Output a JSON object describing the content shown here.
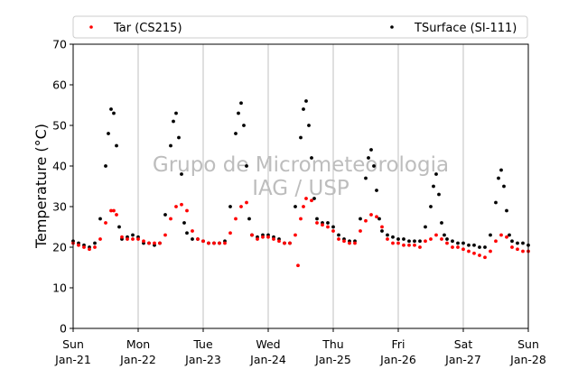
{
  "chart_data": {
    "type": "scatter",
    "title": "",
    "xlabel": "",
    "ylabel": "Temperature (°C)",
    "ylim": [
      0,
      70
    ],
    "yticks": [
      0,
      10,
      20,
      30,
      40,
      50,
      60,
      70
    ],
    "xlim": [
      "2018-01-21",
      "2018-01-28"
    ],
    "xticks": [
      {
        "day": "Sun",
        "date": "Jan-21"
      },
      {
        "day": "Mon",
        "date": "Jan-22"
      },
      {
        "day": "Tue",
        "date": "Jan-23"
      },
      {
        "day": "Wed",
        "date": "Jan-24"
      },
      {
        "day": "Thu",
        "date": "Jan-25"
      },
      {
        "day": "Fri",
        "date": "Jan-26"
      },
      {
        "day": "Sat",
        "date": "Jan-27"
      },
      {
        "day": "Sun",
        "date": "Jan-28"
      }
    ],
    "grid": "vertical",
    "legend_position": "top",
    "watermark": [
      "Grupo de Micrometeorologia",
      "IAG / USP"
    ],
    "series": [
      {
        "name": "Tar (CS215)",
        "color": "#ff0000",
        "x": [
          "2018-01-21 00:00",
          "2018-01-21 02:00",
          "2018-01-21 04:00",
          "2018-01-21 06:00",
          "2018-01-21 08:00",
          "2018-01-21 10:00",
          "2018-01-21 12:00",
          "2018-01-21 14:00",
          "2018-01-21 15:00",
          "2018-01-21 16:00",
          "2018-01-21 18:00",
          "2018-01-21 20:00",
          "2018-01-21 22:00",
          "2018-01-22 00:00",
          "2018-01-22 02:00",
          "2018-01-22 04:00",
          "2018-01-22 06:00",
          "2018-01-22 08:00",
          "2018-01-22 10:00",
          "2018-01-22 12:00",
          "2018-01-22 14:00",
          "2018-01-22 16:00",
          "2018-01-22 18:00",
          "2018-01-22 20:00",
          "2018-01-22 22:00",
          "2018-01-23 00:00",
          "2018-01-23 02:00",
          "2018-01-23 04:00",
          "2018-01-23 06:00",
          "2018-01-23 08:00",
          "2018-01-23 10:00",
          "2018-01-23 12:00",
          "2018-01-23 14:00",
          "2018-01-23 16:00",
          "2018-01-23 18:00",
          "2018-01-23 20:00",
          "2018-01-23 22:00",
          "2018-01-24 00:00",
          "2018-01-24 02:00",
          "2018-01-24 04:00",
          "2018-01-24 06:00",
          "2018-01-24 08:00",
          "2018-01-24 10:00",
          "2018-01-24 12:00",
          "2018-01-24 13:00",
          "2018-01-24 14:00",
          "2018-01-24 16:00",
          "2018-01-24 18:00",
          "2018-01-24 20:00",
          "2018-01-24 22:00",
          "2018-01-25 00:00",
          "2018-01-25 02:00",
          "2018-01-25 04:00",
          "2018-01-25 06:00",
          "2018-01-25 08:00",
          "2018-01-25 10:00",
          "2018-01-25 12:00",
          "2018-01-25 14:00",
          "2018-01-25 16:00",
          "2018-01-25 18:00",
          "2018-01-25 20:00",
          "2018-01-25 22:00",
          "2018-01-26 00:00",
          "2018-01-26 02:00",
          "2018-01-26 04:00",
          "2018-01-26 06:00",
          "2018-01-26 08:00",
          "2018-01-26 10:00",
          "2018-01-26 12:00",
          "2018-01-26 14:00",
          "2018-01-26 16:00",
          "2018-01-26 18:00",
          "2018-01-26 20:00",
          "2018-01-26 22:00",
          "2018-01-27 00:00",
          "2018-01-27 02:00",
          "2018-01-27 04:00",
          "2018-01-27 06:00",
          "2018-01-27 08:00",
          "2018-01-27 10:00",
          "2018-01-27 12:00",
          "2018-01-27 14:00",
          "2018-01-27 16:00",
          "2018-01-27 18:00",
          "2018-01-27 20:00",
          "2018-01-27 22:00",
          "2018-01-28 00:00",
          "2018-01-24 11:00"
        ],
        "y": [
          21,
          20.5,
          20,
          19.5,
          20,
          22,
          26,
          29,
          29,
          28,
          22.5,
          22,
          22,
          22,
          21.5,
          21,
          21,
          21,
          23,
          27,
          30,
          30.5,
          29,
          24,
          22,
          21.5,
          21,
          21,
          21,
          21,
          23.5,
          27,
          30,
          31,
          23,
          22,
          22.5,
          22.5,
          22,
          21.5,
          21,
          21,
          23,
          27,
          30,
          32,
          31.5,
          26,
          25.5,
          25,
          24,
          22,
          21.5,
          21,
          21,
          24,
          26.5,
          28,
          27.5,
          25,
          22,
          21,
          21,
          20.5,
          20.5,
          20.5,
          20,
          21.5,
          22,
          23,
          22,
          21,
          20,
          20,
          19.5,
          19,
          18.5,
          18,
          17.5,
          19,
          21.5,
          23,
          22.5,
          20,
          19.5,
          19,
          19,
          15.5
        ]
      },
      {
        "name": "TSurface (SI-111)",
        "color": "#000000",
        "x": [
          "2018-01-21 00:00",
          "2018-01-21 02:00",
          "2018-01-21 04:00",
          "2018-01-21 06:00",
          "2018-01-21 08:00",
          "2018-01-21 10:00",
          "2018-01-21 12:00",
          "2018-01-21 13:00",
          "2018-01-21 14:00",
          "2018-01-21 15:00",
          "2018-01-21 16:00",
          "2018-01-21 17:00",
          "2018-01-21 18:00",
          "2018-01-21 20:00",
          "2018-01-21 22:00",
          "2018-01-22 00:00",
          "2018-01-22 02:00",
          "2018-01-22 04:00",
          "2018-01-22 06:00",
          "2018-01-22 08:00",
          "2018-01-22 10:00",
          "2018-01-22 12:00",
          "2018-01-22 13:00",
          "2018-01-22 14:00",
          "2018-01-22 15:00",
          "2018-01-22 16:00",
          "2018-01-22 17:00",
          "2018-01-22 18:00",
          "2018-01-22 20:00",
          "2018-01-22 22:00",
          "2018-01-23 00:00",
          "2018-01-23 02:00",
          "2018-01-23 04:00",
          "2018-01-23 06:00",
          "2018-01-23 08:00",
          "2018-01-23 10:00",
          "2018-01-23 12:00",
          "2018-01-23 13:00",
          "2018-01-23 14:00",
          "2018-01-23 15:00",
          "2018-01-23 16:00",
          "2018-01-23 17:00",
          "2018-01-23 18:00",
          "2018-01-23 20:00",
          "2018-01-23 22:00",
          "2018-01-24 00:00",
          "2018-01-24 02:00",
          "2018-01-24 04:00",
          "2018-01-24 06:00",
          "2018-01-24 08:00",
          "2018-01-24 10:00",
          "2018-01-24 12:00",
          "2018-01-24 13:00",
          "2018-01-24 14:00",
          "2018-01-24 15:00",
          "2018-01-24 16:00",
          "2018-01-24 17:00",
          "2018-01-24 18:00",
          "2018-01-24 20:00",
          "2018-01-24 22:00",
          "2018-01-25 00:00",
          "2018-01-25 02:00",
          "2018-01-25 04:00",
          "2018-01-25 06:00",
          "2018-01-25 08:00",
          "2018-01-25 10:00",
          "2018-01-25 12:00",
          "2018-01-25 13:00",
          "2018-01-25 14:00",
          "2018-01-25 15:00",
          "2018-01-25 16:00",
          "2018-01-25 17:00",
          "2018-01-25 18:00",
          "2018-01-25 20:00",
          "2018-01-25 22:00",
          "2018-01-26 00:00",
          "2018-01-26 02:00",
          "2018-01-26 04:00",
          "2018-01-26 06:00",
          "2018-01-26 08:00",
          "2018-01-26 10:00",
          "2018-01-26 12:00",
          "2018-01-26 13:00",
          "2018-01-26 14:00",
          "2018-01-26 15:00",
          "2018-01-26 16:00",
          "2018-01-26 17:00",
          "2018-01-26 18:00",
          "2018-01-26 20:00",
          "2018-01-26 22:00",
          "2018-01-27 00:00",
          "2018-01-27 02:00",
          "2018-01-27 04:00",
          "2018-01-27 06:00",
          "2018-01-27 08:00",
          "2018-01-27 10:00",
          "2018-01-27 12:00",
          "2018-01-27 13:00",
          "2018-01-27 14:00",
          "2018-01-27 15:00",
          "2018-01-27 16:00",
          "2018-01-27 17:00",
          "2018-01-27 18:00",
          "2018-01-27 20:00",
          "2018-01-27 22:00",
          "2018-01-28 00:00"
        ],
        "y": [
          21.5,
          21,
          20.5,
          20,
          21,
          27,
          40,
          48,
          54,
          53,
          45,
          25,
          22,
          22.5,
          23,
          22.5,
          21,
          21,
          20.5,
          21,
          28,
          45,
          51,
          53,
          47,
          38,
          26,
          23.5,
          22,
          22,
          21.5,
          21,
          21,
          21,
          21.5,
          30,
          48,
          53,
          55.5,
          50,
          40,
          27,
          23,
          22.5,
          23,
          23,
          22.5,
          22,
          21,
          21,
          30,
          47,
          54,
          56,
          50,
          42,
          32,
          27,
          26,
          26,
          25,
          23,
          22,
          21.5,
          21.5,
          27,
          37,
          42,
          44,
          40,
          34,
          27,
          24,
          23,
          22.5,
          22,
          22,
          21.5,
          21.5,
          21.5,
          25,
          30,
          35,
          38,
          33,
          26,
          23,
          22,
          21.5,
          21,
          21,
          20.5,
          20.5,
          20,
          20,
          23,
          31,
          37,
          39,
          35,
          29,
          23,
          21.5,
          21,
          21,
          20.5
        ]
      }
    ]
  }
}
